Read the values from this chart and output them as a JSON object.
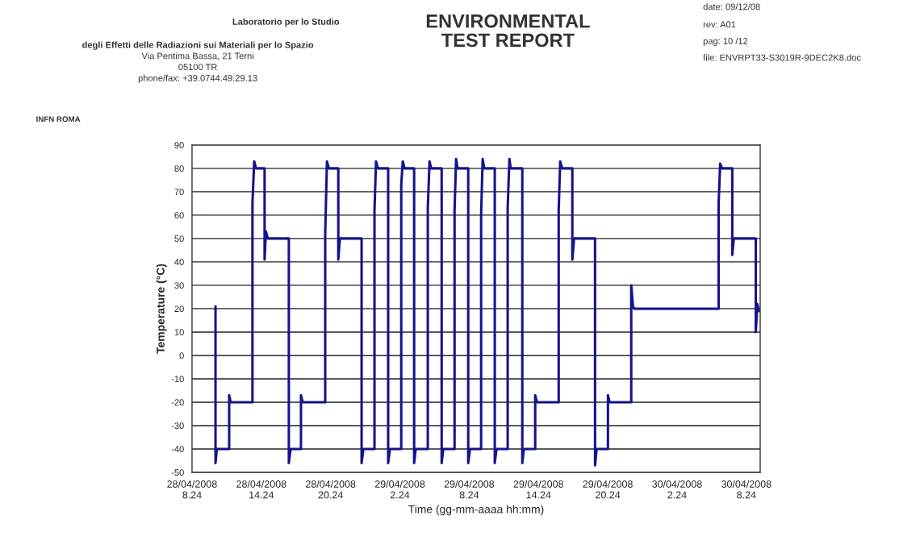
{
  "chart_data": {
    "type": "line",
    "title": "ENVIRONMENTAL\nTEST REPORT",
    "xlabel": "Time (gg-mm-aaaa hh:mm)",
    "ylabel": "Temperature (°C)",
    "annotations": [
      "Laboratorio per lo Studio",
      "degli Effetti delle Radiazioni sui Materiali per lo Spazio",
      "Via Pentima Bassa, 21 Terni",
      "05100 TR",
      "phone/fax: +39.0744.49.29.13",
      "date: 09/12/08",
      "rev: A01",
      "pag: 10 /12",
      "file: ENVRPT33-S3019R-9DEC2K8.doc",
      "INFN ROMA"
    ],
    "xlim": [
      "2008-04-28T08:24",
      "2008-04-30T09:36"
    ],
    "ylim": [
      -50,
      90
    ],
    "xticks": [
      {
        "value": "2008-04-28T08:24",
        "label": "28/04/2008\n8.24"
      },
      {
        "value": "2008-04-28T14:24",
        "label": "28/04/2008\n14.24"
      },
      {
        "value": "2008-04-28T20:24",
        "label": "28/04/2008\n20.24"
      },
      {
        "value": "2008-04-29T02:24",
        "label": "29/04/2008\n2.24"
      },
      {
        "value": "2008-04-29T08:24",
        "label": "29/04/2008\n8.24"
      },
      {
        "value": "2008-04-29T14:24",
        "label": "29/04/2008\n14.24"
      },
      {
        "value": "2008-04-29T20:24",
        "label": "29/04/2008\n20.24"
      },
      {
        "value": "2008-04-30T02:24",
        "label": "30/04/2008\n2.24"
      },
      {
        "value": "2008-04-30T08:24",
        "label": "30/04/2008\n8.24"
      }
    ],
    "yticks": [
      -50,
      -40,
      -30,
      -20,
      -10,
      0,
      10,
      20,
      30,
      40,
      50,
      60,
      70,
      80,
      90
    ],
    "grid": "y",
    "legend": false,
    "marker": "none",
    "line_style": "solid",
    "series": [
      {
        "color": "#14148c",
        "x": [
          "2008-04-28T10:26",
          "2008-04-28T10:26",
          "2008-04-28T10:33",
          "2008-04-28T11:37",
          "2008-04-28T11:37",
          "2008-04-28T11:45",
          "2008-04-28T13:38",
          "2008-04-28T13:38",
          "2008-04-28T13:47",
          "2008-04-28T13:57",
          "2008-04-28T14:41",
          "2008-04-28T14:41",
          "2008-04-28T14:48",
          "2008-04-28T14:58",
          "2008-04-28T16:47",
          "2008-04-28T16:47",
          "2008-04-28T16:56",
          "2008-04-28T17:50",
          "2008-04-28T17:50",
          "2008-04-28T17:59",
          "2008-04-28T19:56",
          "2008-04-28T19:56",
          "2008-04-28T20:05",
          "2008-04-28T20:15",
          "2008-04-28T21:04",
          "2008-04-28T21:04",
          "2008-04-28T21:12",
          "2008-04-28T23:05",
          "2008-04-28T23:05",
          "2008-04-28T23:14",
          "2008-04-29T00:12",
          "2008-04-29T00:12",
          "2008-04-29T00:20",
          "2008-04-29T00:30",
          "2008-04-29T01:23",
          "2008-04-29T01:23",
          "2008-04-29T01:32",
          "2008-04-29T02:31",
          "2008-04-29T02:31",
          "2008-04-29T02:39",
          "2008-04-29T02:48",
          "2008-04-29T03:38",
          "2008-04-29T03:38",
          "2008-04-29T03:46",
          "2008-04-29T04:49",
          "2008-04-29T04:49",
          "2008-04-29T04:58",
          "2008-04-29T05:06",
          "2008-04-29T06:01",
          "2008-04-29T06:01",
          "2008-04-29T06:09",
          "2008-04-29T07:08",
          "2008-04-29T07:08",
          "2008-04-29T07:16",
          "2008-04-29T07:24",
          "2008-04-29T08:19",
          "2008-04-29T08:19",
          "2008-04-29T08:28",
          "2008-04-29T09:26",
          "2008-04-29T09:26",
          "2008-04-29T09:34",
          "2008-04-29T09:42",
          "2008-04-29T10:37",
          "2008-04-29T10:37",
          "2008-04-29T10:46",
          "2008-04-29T11:44",
          "2008-04-29T11:44",
          "2008-04-29T11:53",
          "2008-04-29T12:00",
          "2008-04-29T13:00",
          "2008-04-29T13:00",
          "2008-04-29T13:08",
          "2008-04-29T14:07",
          "2008-04-29T14:07",
          "2008-04-29T14:16",
          "2008-04-29T16:09",
          "2008-04-29T16:09",
          "2008-04-29T16:17",
          "2008-04-29T16:27",
          "2008-04-29T17:20",
          "2008-04-29T17:20",
          "2008-04-29T17:29",
          "2008-04-29T19:18",
          "2008-04-29T19:18",
          "2008-04-29T19:26",
          "2008-04-29T20:25",
          "2008-04-29T20:25",
          "2008-04-29T20:33",
          "2008-04-29T22:26",
          "2008-04-29T22:26",
          "2008-04-29T22:35",
          "2008-04-29T22:42",
          "2008-04-30T06:00",
          "2008-04-30T06:00",
          "2008-04-30T06:08",
          "2008-04-30T06:18",
          "2008-04-30T07:11",
          "2008-04-30T07:11",
          "2008-04-30T07:19",
          "2008-04-30T09:13",
          "2008-04-30T09:13",
          "2008-04-30T09:21",
          "2008-04-30T09:29"
        ],
        "values": [
          21,
          -46,
          -40,
          -40,
          -17,
          -20,
          -20,
          65,
          83,
          80,
          80,
          41,
          53,
          50,
          50,
          -46,
          -40,
          -40,
          -17,
          -20,
          -20,
          52,
          83,
          80,
          80,
          41,
          50,
          50,
          -46,
          -40,
          -40,
          62,
          83,
          80,
          80,
          -46,
          -40,
          -40,
          73,
          83,
          80,
          80,
          -46,
          -40,
          -40,
          63,
          83,
          80,
          80,
          -46,
          -40,
          -40,
          62,
          84,
          80,
          80,
          -46,
          -40,
          -40,
          60,
          84,
          80,
          80,
          -46,
          -40,
          -40,
          63,
          84,
          80,
          80,
          -46,
          -40,
          -40,
          -17,
          -20,
          -20,
          62,
          83,
          80,
          80,
          41,
          50,
          50,
          -47,
          -40,
          -40,
          -17,
          -20,
          -20,
          30,
          21,
          20,
          20,
          65,
          82,
          80,
          80,
          43,
          50,
          50,
          10,
          22,
          19
        ]
      }
    ]
  }
}
